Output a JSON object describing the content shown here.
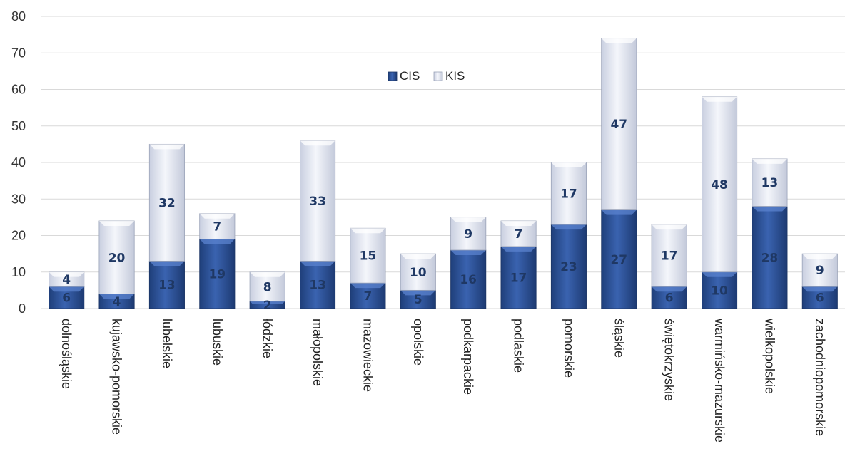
{
  "chart_data": {
    "type": "bar",
    "stacked": true,
    "categories": [
      "dolnośląskie",
      "kujawsko-pomorskie",
      "lubelskie",
      "lubuskie",
      "łódzkie",
      "małopolskie",
      "mazowieckie",
      "opolskie",
      "podkarpackie",
      "podlaskie",
      "pomorskie",
      "śląskie",
      "świętokrzyskie",
      "warmińsko-mazurskie",
      "wielkopolskie",
      "zachodniopomorskie"
    ],
    "series": [
      {
        "name": "CIS",
        "values": [
          6,
          4,
          13,
          19,
          2,
          13,
          7,
          5,
          16,
          17,
          23,
          27,
          6,
          10,
          28,
          6
        ],
        "color": "#2f5597"
      },
      {
        "name": "KIS",
        "values": [
          4,
          20,
          32,
          7,
          8,
          33,
          15,
          10,
          9,
          7,
          17,
          47,
          17,
          48,
          13,
          9
        ],
        "color": "#dae3f3"
      }
    ],
    "ylim": [
      0,
      80
    ],
    "yticks": [
      "0",
      "10",
      "20",
      "30",
      "40",
      "50",
      "60",
      "70",
      "80"
    ],
    "grid": true,
    "legend_position": "top-center"
  }
}
